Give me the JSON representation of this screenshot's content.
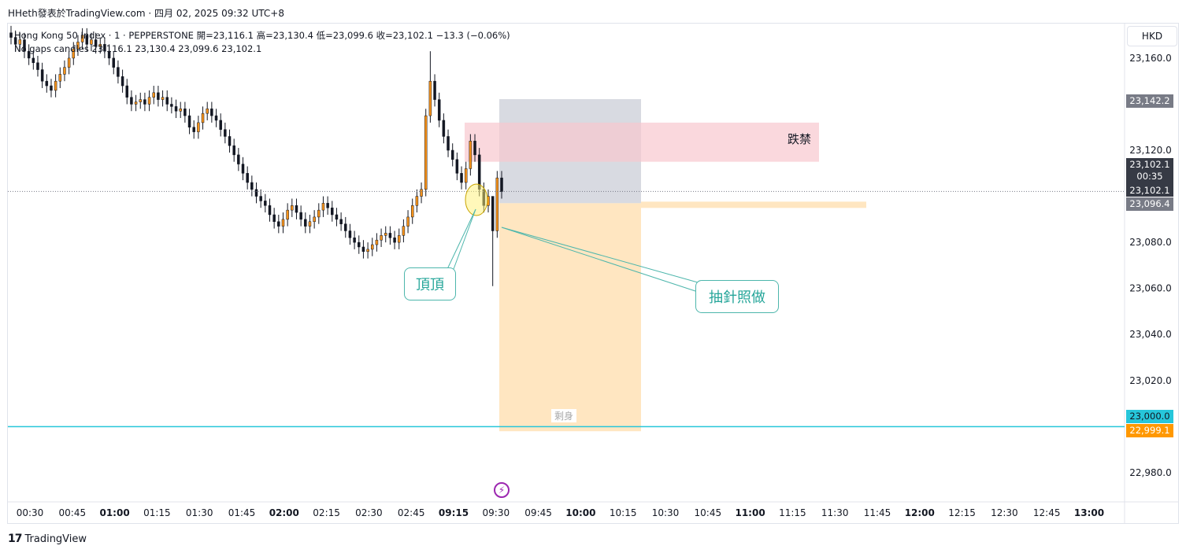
{
  "header": {
    "title": "HHeth發表於TradingView.com · 四月 02, 2025 09:32 UTC+8"
  },
  "legend": {
    "line1": "Hong Kong 50 Index · 1 · PEPPERSTONE  開=23,116.1  高=23,130.4  低=23,099.6  收=23,102.1  −13.3 (−0.06%)",
    "line2": "No gaps candles  23,116.1  23,130.4  23,099.6  23,102.1"
  },
  "currency_badge": "HKD",
  "annotations": {
    "top_callout": "頂頂",
    "wick_callout": "抽針照做",
    "red_zone_label": "跌禁",
    "profit_zone_label": "剩身"
  },
  "price_tags": {
    "upper": "23,142.2",
    "last_price": "23,102.1",
    "countdown": "00:35",
    "last_price_2": "23,102.1",
    "entry": "23,096.4",
    "level_line": "23,000.0",
    "target": "22,999.1"
  },
  "colors": {
    "up_candle": "#f7931a",
    "down_candle": "#131722",
    "level_line": "#26c6da",
    "red_zone": "#f8c8ce",
    "stop_zone": "#d1d4dc",
    "profit_zone": "#ffe0b2",
    "tag_dark": "#363a45",
    "tag_gray": "#787b86",
    "tag_cyan": "#26c6da",
    "tag_orange": "#ff9800",
    "accent_callout": "#26a69a"
  },
  "footer": {
    "brand": "TradingView",
    "logo_icon": "tradingview-logo-icon"
  },
  "chart_data": {
    "type": "candlestick",
    "x_ticks": [
      {
        "label": "00:30",
        "bold": false
      },
      {
        "label": "00:45",
        "bold": false
      },
      {
        "label": "01:00",
        "bold": true
      },
      {
        "label": "01:15",
        "bold": false
      },
      {
        "label": "01:30",
        "bold": false
      },
      {
        "label": "01:45",
        "bold": false
      },
      {
        "label": "02:00",
        "bold": true
      },
      {
        "label": "02:15",
        "bold": false
      },
      {
        "label": "02:30",
        "bold": false
      },
      {
        "label": "02:45",
        "bold": false
      },
      {
        "label": "09:15",
        "bold": true
      },
      {
        "label": "09:30",
        "bold": false
      },
      {
        "label": "09:45",
        "bold": false
      },
      {
        "label": "10:00",
        "bold": true
      },
      {
        "label": "10:15",
        "bold": false
      },
      {
        "label": "10:30",
        "bold": false
      },
      {
        "label": "10:45",
        "bold": false
      },
      {
        "label": "11:00",
        "bold": true
      },
      {
        "label": "11:15",
        "bold": false
      },
      {
        "label": "11:30",
        "bold": false
      },
      {
        "label": "11:45",
        "bold": false
      },
      {
        "label": "12:00",
        "bold": true
      },
      {
        "label": "12:15",
        "bold": false
      },
      {
        "label": "12:30",
        "bold": false
      },
      {
        "label": "12:45",
        "bold": false
      },
      {
        "label": "13:00",
        "bold": true
      }
    ],
    "y_ticks": [
      "23,160.0",
      "23,120.0",
      "23,080.0",
      "23,060.0",
      "23,040.0",
      "23,020.0",
      "22,980.0"
    ],
    "y_tick_values": [
      23160,
      23120,
      23080,
      23060,
      23040,
      23020,
      22980
    ],
    "ylim": [
      22968,
      23175
    ],
    "horizontal_level": 23000,
    "last_price": 23102.1,
    "red_zone": [
      23115,
      23132
    ],
    "stop_zone": [
      23097,
      23142.2
    ],
    "profit_zone": [
      22998,
      23097
    ],
    "closes": [
      23169,
      23166,
      23168,
      23163,
      23160,
      23158,
      23155,
      23150,
      23148,
      23146,
      23150,
      23153,
      23156,
      23160,
      23164,
      23167,
      23170,
      23166,
      23168,
      23165,
      23166,
      23163,
      23160,
      23156,
      23152,
      23148,
      23143,
      23140,
      23141,
      23142,
      23140,
      23143,
      23145,
      23142,
      23143,
      23140,
      23139,
      23137,
      23138,
      23135,
      23130,
      23128,
      23132,
      23136,
      23138,
      23135,
      23133,
      23129,
      23126,
      23122,
      23118,
      23114,
      23110,
      23106,
      23103,
      23100,
      23098,
      23096,
      23092,
      23089,
      23087,
      23090,
      23094,
      23096,
      23093,
      23090,
      23087,
      23089,
      23091,
      23094,
      23097,
      23095,
      23092,
      23090,
      23088,
      23085,
      23082,
      23080,
      23078,
      23076,
      23077,
      23079,
      23081,
      23083,
      23084,
      23082,
      23080,
      23083,
      23087,
      23091,
      23096,
      23100,
      23103,
      23135,
      23150,
      23142,
      23133,
      23126,
      23120,
      23116,
      23110,
      23106,
      23112,
      23124,
      23118,
      23103,
      23096,
      23100,
      23085,
      23108,
      23102
    ]
  }
}
